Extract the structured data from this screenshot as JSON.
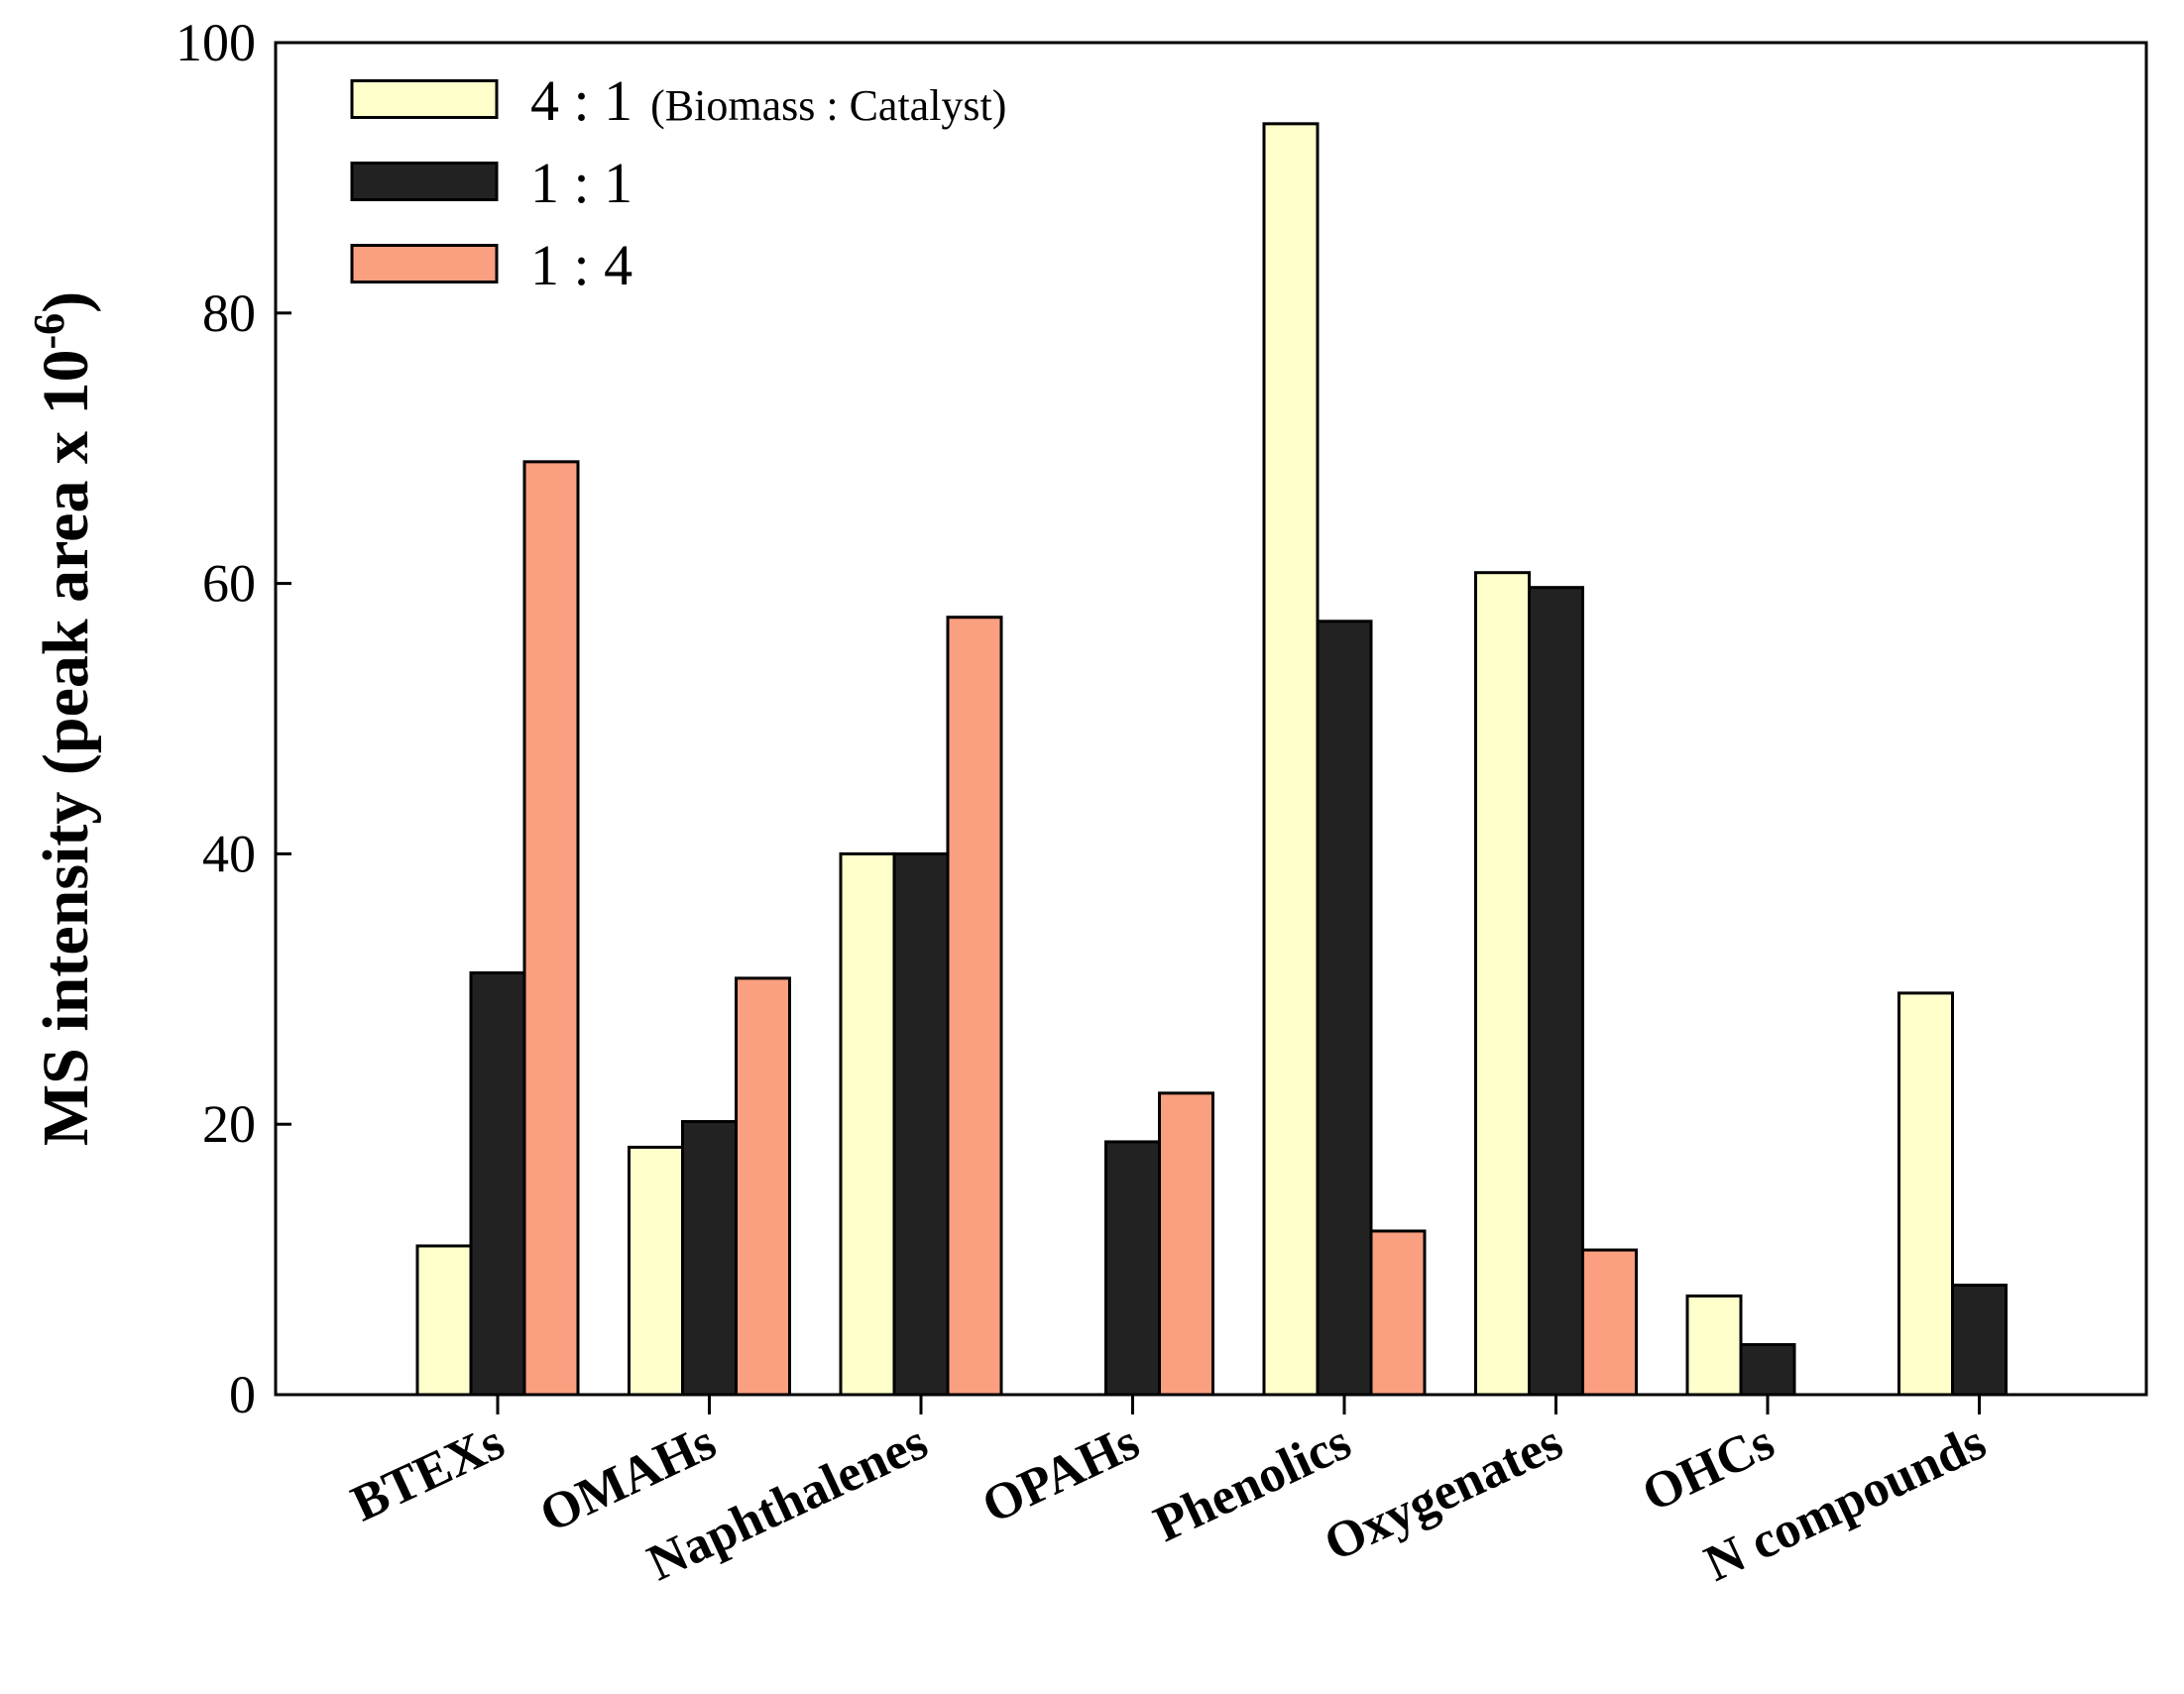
{
  "chart_data": {
    "type": "bar",
    "title": "",
    "xlabel": "",
    "ylabel": "MS intensity (peak area x 10",
    "ylabel_superscript": "-6",
    "ylabel_suffix": ")",
    "ylim": [
      0,
      100
    ],
    "yticks": [
      0,
      20,
      40,
      60,
      80,
      100
    ],
    "ytick_labels": [
      "0",
      "20",
      "40",
      "60",
      "80",
      "100"
    ],
    "grid": false,
    "legend_position": "top-left",
    "categories": [
      "BTEXs",
      "OMAHs",
      "Naphthalenes",
      "OPAHs",
      "Phenolics",
      "Oxygenates",
      "OHCs",
      "N compounds"
    ],
    "series": [
      {
        "name": "4 : 1",
        "note": "(Biomass : Catalyst)",
        "color": "#ffffcc",
        "values": [
          11,
          18.3,
          40,
          0,
          94,
          60.8,
          7.3,
          29.7
        ]
      },
      {
        "name": "1 : 1",
        "note": "",
        "color": "#222222",
        "values": [
          31.2,
          20.2,
          40,
          18.7,
          57.2,
          59.7,
          3.7,
          8.1
        ]
      },
      {
        "name": "1 : 4",
        "note": "",
        "color": "#fa9f80",
        "values": [
          69,
          30.8,
          57.5,
          22.3,
          12.1,
          10.7,
          0,
          0
        ]
      }
    ]
  }
}
